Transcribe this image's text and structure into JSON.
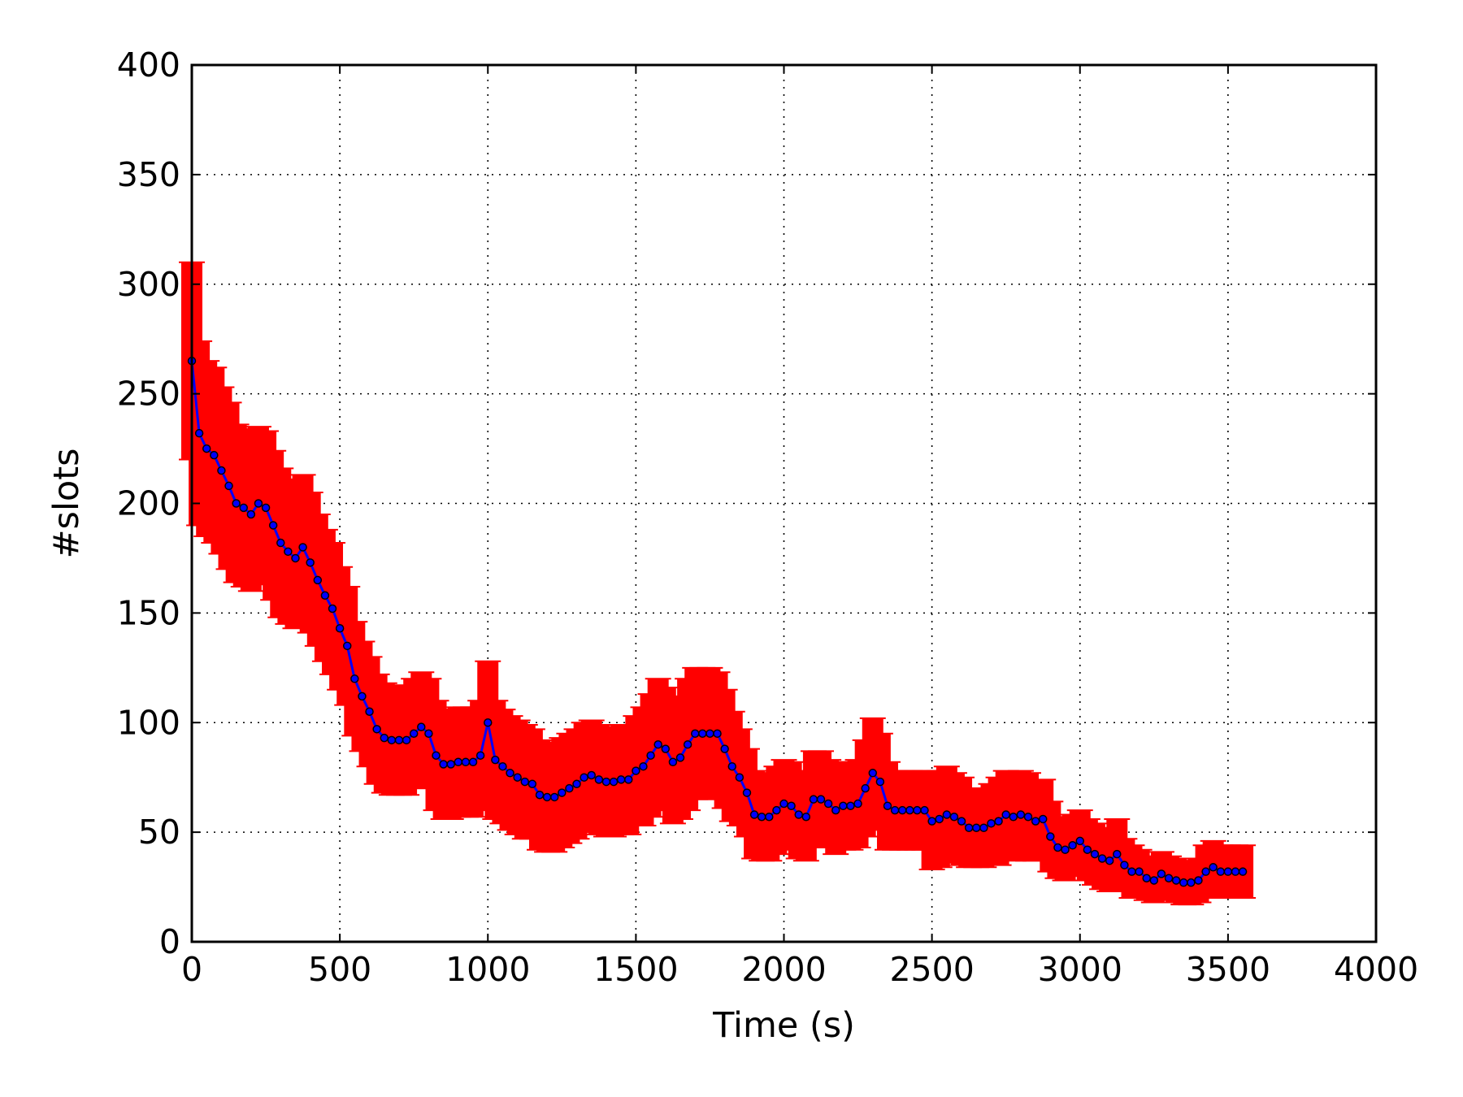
{
  "chart_data": {
    "type": "line",
    "title": "",
    "xlabel": "Time (s)",
    "ylabel": "#slots",
    "xlim": [
      0,
      4000
    ],
    "ylim": [
      0,
      400
    ],
    "xticks": [
      0,
      500,
      1000,
      1500,
      2000,
      2500,
      3000,
      3500,
      4000
    ],
    "xtick_labels": [
      "0",
      "500",
      "1000",
      "1500",
      "2000",
      "2500",
      "3000",
      "3500",
      "4000"
    ],
    "yticks": [
      0,
      50,
      100,
      150,
      200,
      250,
      300,
      350,
      400
    ],
    "ytick_labels": [
      "0",
      "50",
      "100",
      "150",
      "200",
      "250",
      "300",
      "350",
      "400"
    ],
    "grid": true,
    "legend": "none",
    "colors": {
      "line": "#0000ff",
      "marker_edge": "#000000",
      "errorbar": "#ff0000"
    },
    "series": [
      {
        "x": [
          0,
          25,
          50,
          75,
          100,
          125,
          150,
          175,
          200,
          225,
          250,
          275,
          300,
          325,
          350,
          375,
          400,
          425,
          450,
          475,
          500,
          525,
          550,
          575,
          600,
          625,
          650,
          675,
          700,
          725,
          750,
          775,
          800,
          825,
          850,
          875,
          900,
          925,
          950,
          975,
          1000,
          1025,
          1050,
          1075,
          1100,
          1125,
          1150,
          1175,
          1200,
          1225,
          1250,
          1275,
          1300,
          1325,
          1350,
          1375,
          1400,
          1425,
          1450,
          1475,
          1500,
          1525,
          1550,
          1575,
          1600,
          1625,
          1650,
          1675,
          1700,
          1725,
          1750,
          1775,
          1800,
          1825,
          1850,
          1875,
          1900,
          1925,
          1950,
          1975,
          2000,
          2025,
          2050,
          2075,
          2100,
          2125,
          2150,
          2175,
          2200,
          2225,
          2250,
          2275,
          2300,
          2325,
          2350,
          2375,
          2400,
          2425,
          2450,
          2475,
          2500,
          2525,
          2550,
          2575,
          2600,
          2625,
          2650,
          2675,
          2700,
          2725,
          2750,
          2775,
          2800,
          2825,
          2850,
          2875,
          2900,
          2925,
          2950,
          2975,
          3000,
          3025,
          3050,
          3075,
          3100,
          3125,
          3150,
          3175,
          3200,
          3225,
          3250,
          3275,
          3300,
          3325,
          3350,
          3375,
          3400,
          3425,
          3450,
          3475,
          3500,
          3525,
          3550
        ],
        "y": [
          265,
          232,
          225,
          222,
          215,
          208,
          200,
          198,
          195,
          200,
          198,
          190,
          182,
          178,
          175,
          180,
          173,
          165,
          158,
          152,
          143,
          135,
          120,
          112,
          105,
          97,
          93,
          92,
          92,
          92,
          95,
          98,
          95,
          85,
          81,
          81,
          82,
          82,
          82,
          85,
          100,
          83,
          80,
          77,
          75,
          73,
          72,
          67,
          66,
          66,
          68,
          70,
          72,
          75,
          76,
          74,
          73,
          73,
          74,
          74,
          78,
          80,
          85,
          90,
          88,
          82,
          84,
          90,
          95,
          95,
          95,
          95,
          88,
          80,
          75,
          68,
          58,
          57,
          57,
          60,
          63,
          62,
          58,
          57,
          65,
          65,
          63,
          60,
          62,
          62,
          63,
          70,
          77,
          73,
          62,
          60,
          60,
          60,
          60,
          60,
          55,
          56,
          58,
          57,
          55,
          52,
          52,
          52,
          54,
          55,
          58,
          57,
          58,
          57,
          55,
          56,
          48,
          43,
          42,
          44,
          46,
          42,
          40,
          38,
          37,
          40,
          35,
          32,
          32,
          29,
          28,
          31,
          29,
          28,
          27,
          27,
          28,
          32,
          34,
          32,
          32,
          32,
          32
        ],
        "yerr": [
          45,
          42,
          40,
          40,
          38,
          38,
          36,
          36,
          35,
          35,
          35,
          34,
          34,
          33,
          32,
          33,
          32,
          30,
          30,
          30,
          28,
          27,
          26,
          25,
          25,
          25,
          25,
          25,
          25,
          25,
          25,
          25,
          25,
          25,
          25,
          25,
          25,
          25,
          25,
          25,
          28,
          27,
          26,
          26,
          26,
          26,
          25,
          25,
          25,
          25,
          25,
          25,
          25,
          25,
          25,
          25,
          25,
          25,
          25,
          25,
          25,
          27,
          28,
          30,
          28,
          28,
          28,
          30,
          30,
          30,
          30,
          28,
          27,
          25,
          22,
          20,
          20,
          20,
          20,
          20,
          20,
          20,
          20,
          20,
          22,
          22,
          20,
          20,
          20,
          20,
          20,
          22,
          25,
          22,
          20,
          18,
          18,
          18,
          18,
          18,
          22,
          22,
          22,
          20,
          20,
          18,
          18,
          18,
          18,
          20,
          20,
          20,
          20,
          20,
          18,
          18,
          16,
          14,
          14,
          14,
          14,
          14,
          14,
          14,
          14,
          16,
          12,
          12,
          10,
          10,
          10,
          10,
          10,
          10,
          10,
          10,
          10,
          12,
          12,
          12,
          12,
          12,
          12
        ]
      }
    ]
  }
}
